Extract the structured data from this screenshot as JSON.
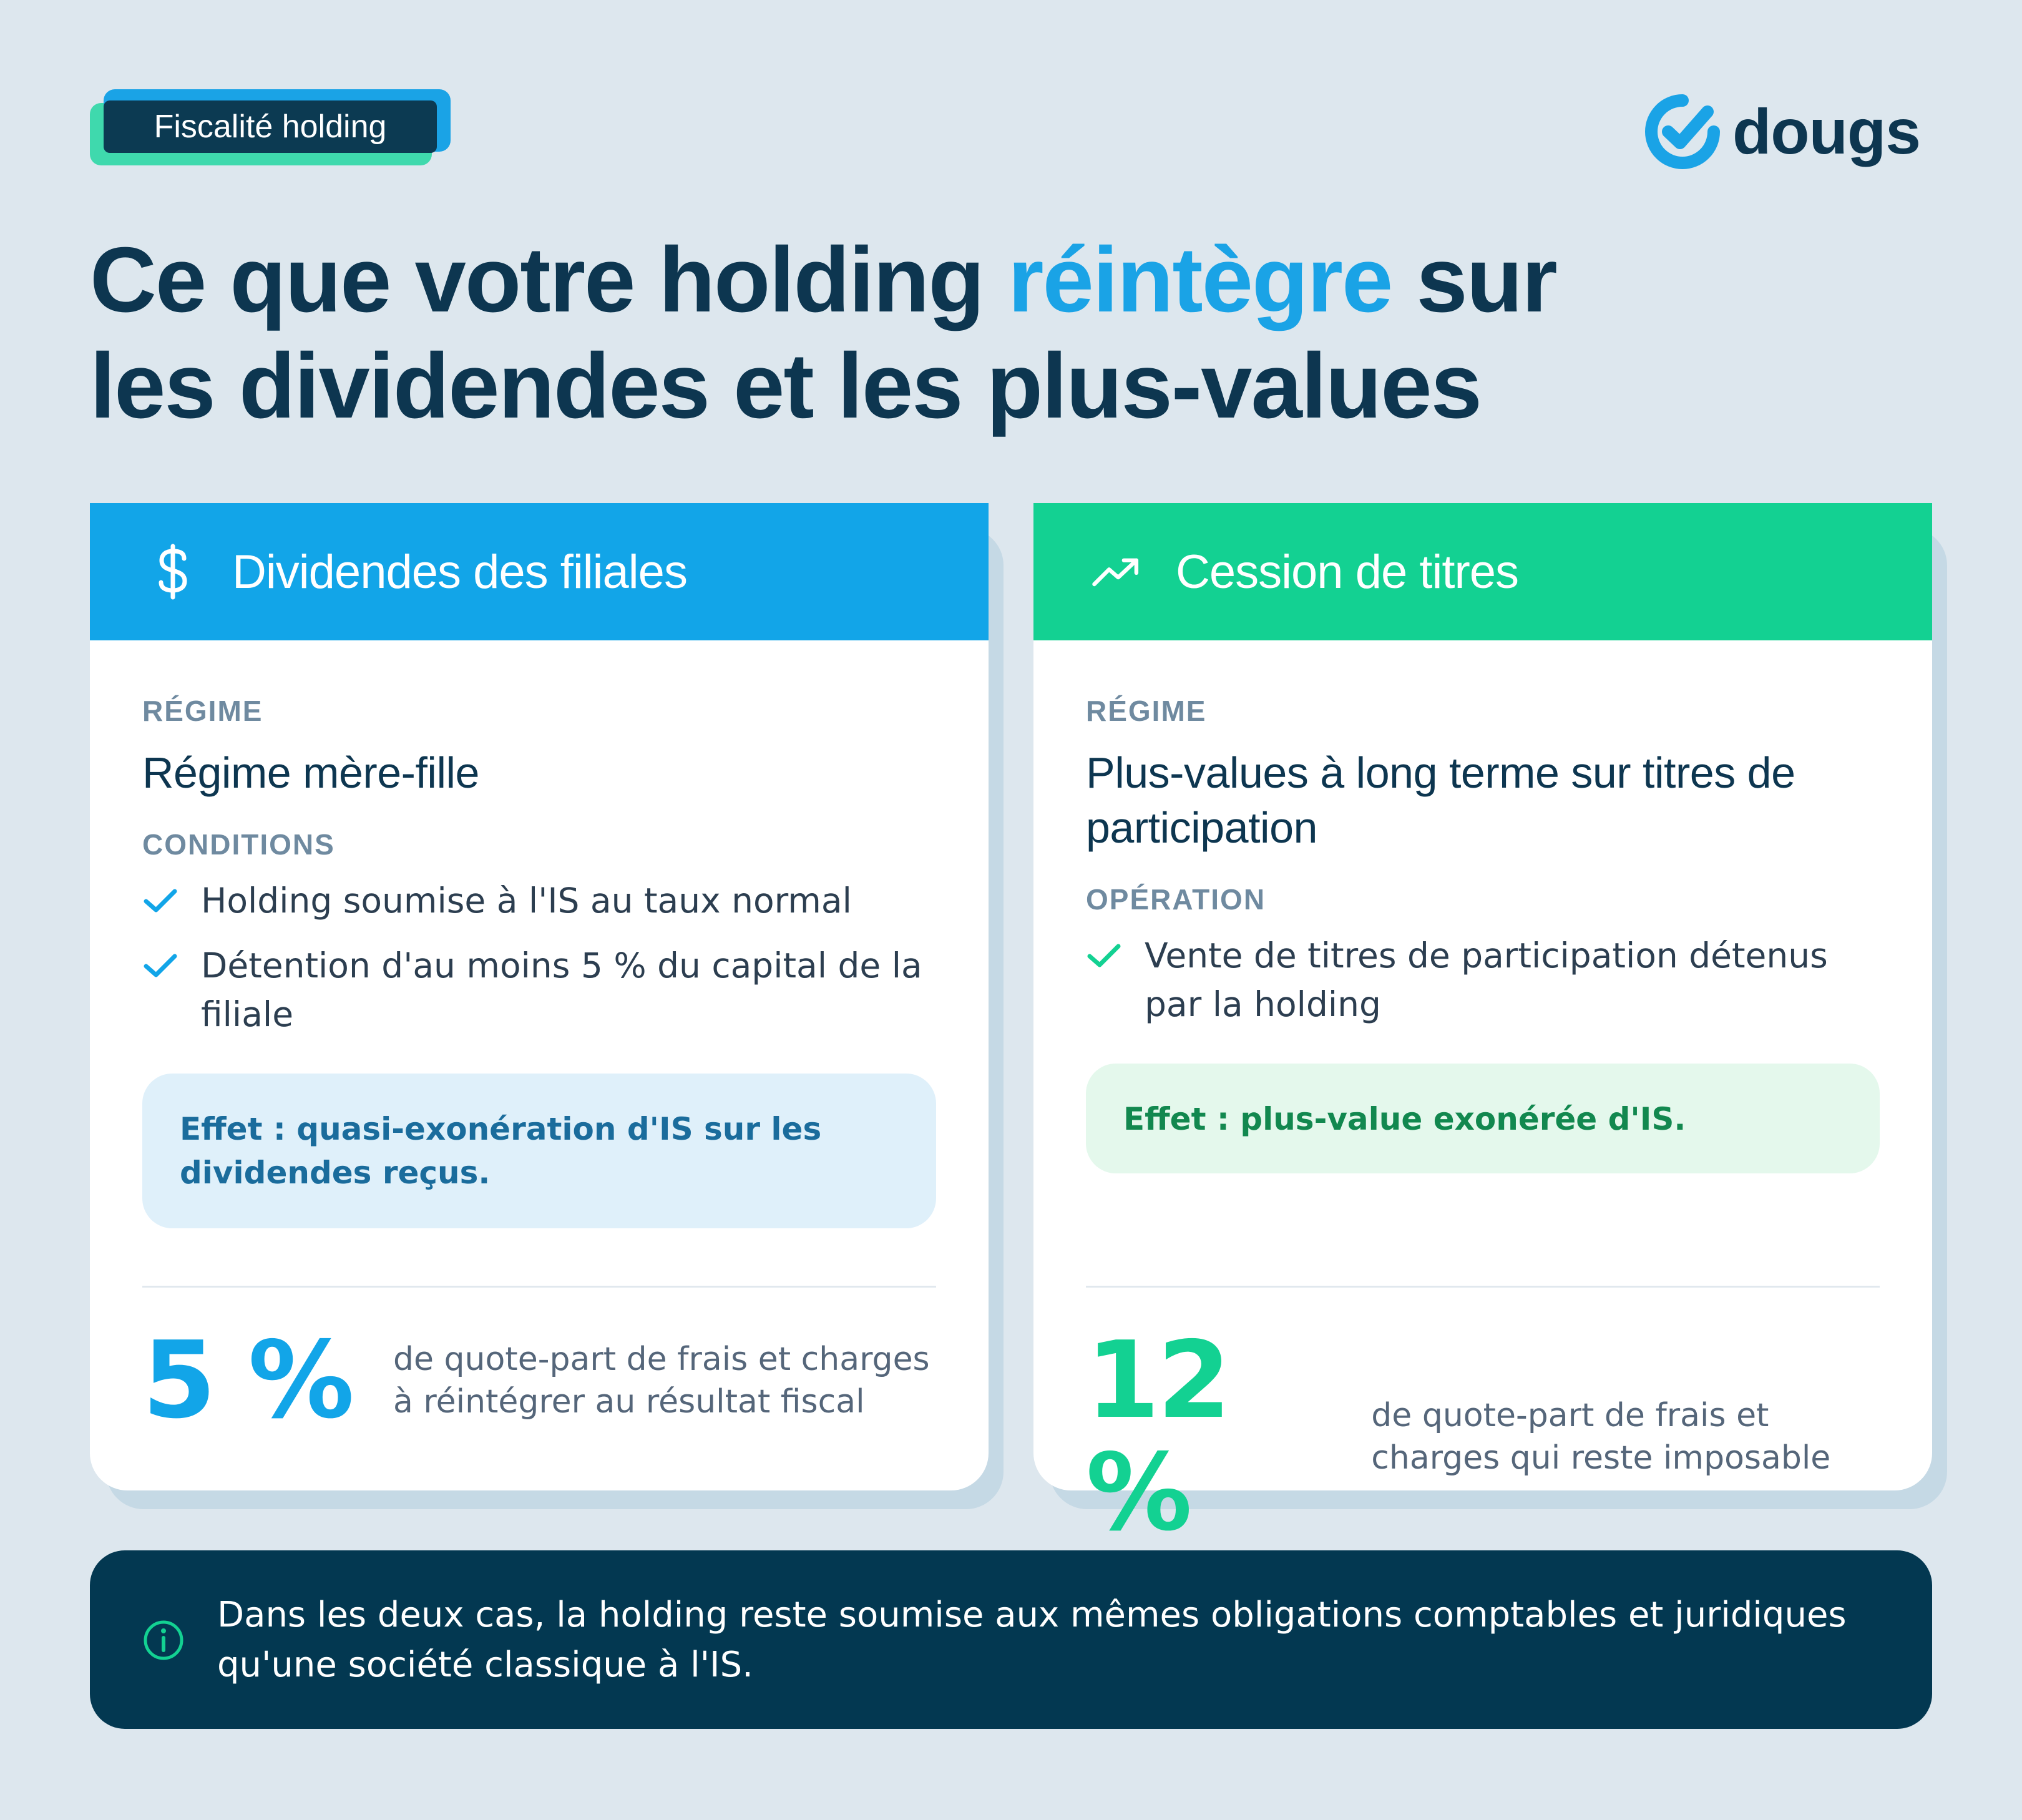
{
  "badge": {
    "label": "Fiscalité holding"
  },
  "brand": {
    "name": "dougs",
    "logo_icon": "check-circle-icon",
    "primary_color": "#1aa3e6",
    "dark_color": "#0d3650"
  },
  "title": {
    "part1": "Ce que votre holding ",
    "highlight": "réintègre",
    "part2": " sur",
    "line2": "les dividendes et les plus-values"
  },
  "cards": [
    {
      "icon": "dollar-icon",
      "header": "Dividendes des filiales",
      "header_color": "#12a5e8",
      "regime_label": "RÉGIME",
      "regime": "Régime mère-fille",
      "conditions_label": "CONDITIONS",
      "items": [
        "Holding soumise à l'IS au taux normal",
        "Détention d'au moins 5 % du capital de la filiale"
      ],
      "effect": "Effet : quasi-exonération d'IS sur les dividendes reçus.",
      "stat_value": "5 %",
      "stat_desc": "de quote-part de frais et charges à réintégrer au résultat fiscal"
    },
    {
      "icon": "trending-up-icon",
      "header": "Cession de titres",
      "header_color": "#13d192",
      "regime_label": "RÉGIME",
      "regime": "Plus-values à long terme sur titres de participation",
      "conditions_label": "OPÉRATION",
      "items": [
        "Vente de titres de participation détenus par la holding"
      ],
      "effect": "Effet : plus-value exonérée d'IS.",
      "stat_value": "12 %",
      "stat_desc": "de quote-part de frais et charges qui reste imposable"
    }
  ],
  "info": {
    "icon": "info-icon",
    "text": "Dans les deux cas, la holding reste soumise aux mêmes obligations comptables et juridiques qu'une société classique à l'IS."
  }
}
